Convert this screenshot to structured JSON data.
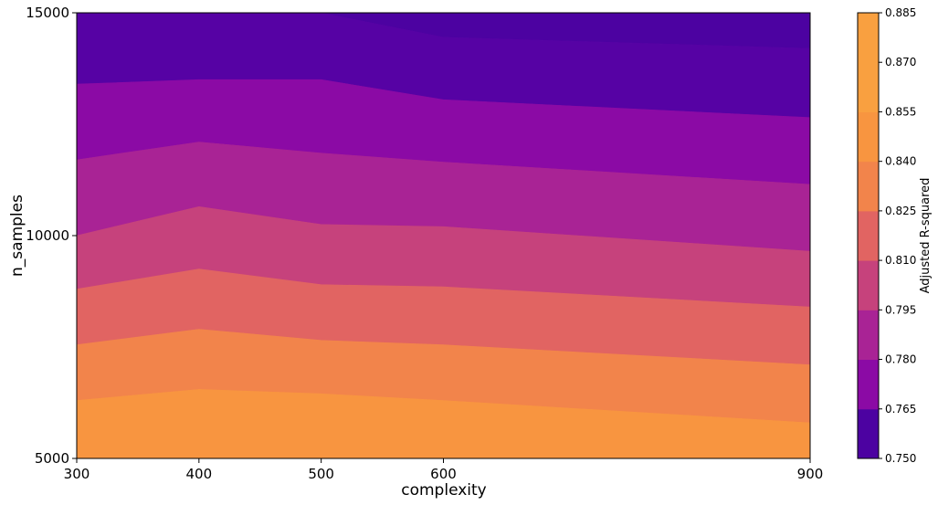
{
  "chart_data": {
    "type": "contourf",
    "xlabel": "complexity",
    "ylabel": "n_samples",
    "colorbar_label": "Adjusted R-squared",
    "x_ticks": [
      300,
      400,
      500,
      600,
      900
    ],
    "y_ticks": [
      5000,
      10000,
      15000
    ],
    "xlim": [
      300,
      900
    ],
    "ylim": [
      5000,
      15000
    ],
    "colorbar_ticks": [
      "0.750",
      "0.765",
      "0.780",
      "0.795",
      "0.810",
      "0.825",
      "0.840",
      "0.855",
      "0.870",
      "0.885"
    ],
    "levels": [
      0.75,
      0.765,
      0.78,
      0.795,
      0.81,
      0.825,
      0.84,
      0.855,
      0.87,
      0.885
    ],
    "colors": [
      "#4c02a1",
      "#5602a4",
      "#8b0aa5",
      "#a92395",
      "#c6427c",
      "#e16462",
      "#f2844b",
      "#f89540",
      "#f9a040"
    ],
    "contour_x": [
      300,
      400,
      500,
      600,
      900
    ],
    "contour_boundaries": [
      {
        "level": 0.765,
        "y": [
          15000,
          15000,
          15000,
          14450,
          14200
        ]
      },
      {
        "level": 0.78,
        "y": [
          13400,
          13500,
          13500,
          13050,
          12650
        ]
      },
      {
        "level": 0.795,
        "y": [
          11700,
          12100,
          11850,
          11650,
          11150
        ]
      },
      {
        "level": 0.81,
        "y": [
          10000,
          10650,
          10250,
          10200,
          9650
        ]
      },
      {
        "level": 0.825,
        "y": [
          8800,
          9250,
          8900,
          8850,
          8400
        ]
      },
      {
        "level": 0.84,
        "y": [
          7550,
          7900,
          7650,
          7550,
          7100
        ]
      },
      {
        "level": 0.855,
        "y": [
          6300,
          6550,
          6450,
          6300,
          5800
        ]
      }
    ]
  }
}
